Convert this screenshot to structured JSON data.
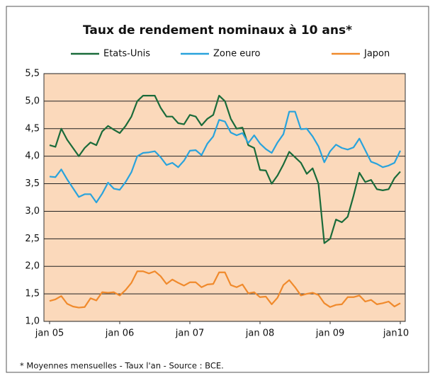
{
  "chart_data": {
    "type": "line",
    "title": "Taux de rendement nominaux à 10 ans*",
    "footnote": "* Moyennes mensuelles - Taux l'an - Source : BCE.",
    "categories": [
      "jan 05",
      null,
      null,
      null,
      null,
      null,
      null,
      null,
      null,
      null,
      null,
      null,
      "jan 06",
      null,
      null,
      null,
      null,
      null,
      null,
      null,
      null,
      null,
      null,
      null,
      "jan 07",
      null,
      null,
      null,
      null,
      null,
      null,
      null,
      null,
      null,
      null,
      null,
      "jan 08",
      null,
      null,
      null,
      null,
      null,
      null,
      null,
      null,
      null,
      null,
      null,
      "jan 09",
      null,
      null,
      null,
      null,
      null,
      null,
      null,
      null,
      null,
      null,
      null,
      "jan10"
    ],
    "series": [
      {
        "name": "Etats-Unis",
        "color": "#1a6b3a",
        "values": [
          4.2,
          4.17,
          4.5,
          4.3,
          4.15,
          4.0,
          4.15,
          4.25,
          4.2,
          4.45,
          4.55,
          4.48,
          4.42,
          4.55,
          4.72,
          5.0,
          5.1,
          5.1,
          5.1,
          4.88,
          4.72,
          4.72,
          4.6,
          4.58,
          4.75,
          4.72,
          4.56,
          4.68,
          4.75,
          5.1,
          5.0,
          4.68,
          4.5,
          4.52,
          4.2,
          4.15,
          3.75,
          3.74,
          3.5,
          3.65,
          3.85,
          4.08,
          3.98,
          3.88,
          3.68,
          3.78,
          3.5,
          2.42,
          2.5,
          2.85,
          2.8,
          2.9,
          3.28,
          3.7,
          3.53,
          3.57,
          3.4,
          3.38,
          3.4,
          3.6,
          3.72
        ]
      },
      {
        "name": "Zone euro",
        "color": "#29a3dc",
        "values": [
          3.63,
          3.62,
          3.76,
          3.58,
          3.42,
          3.26,
          3.31,
          3.31,
          3.16,
          3.32,
          3.52,
          3.41,
          3.39,
          3.53,
          3.71,
          4.0,
          4.06,
          4.07,
          4.09,
          3.98,
          3.84,
          3.88,
          3.8,
          3.92,
          4.1,
          4.11,
          4.02,
          4.23,
          4.36,
          4.66,
          4.63,
          4.43,
          4.38,
          4.42,
          4.24,
          4.38,
          4.23,
          4.13,
          4.06,
          4.25,
          4.4,
          4.81,
          4.81,
          4.49,
          4.5,
          4.36,
          4.18,
          3.89,
          4.09,
          4.21,
          4.15,
          4.12,
          4.16,
          4.32,
          4.11,
          3.9,
          3.86,
          3.8,
          3.83,
          3.88,
          4.1
        ]
      },
      {
        "name": "Japon",
        "color": "#f08a2c",
        "values": [
          1.37,
          1.4,
          1.46,
          1.32,
          1.27,
          1.25,
          1.26,
          1.42,
          1.38,
          1.53,
          1.52,
          1.53,
          1.47,
          1.57,
          1.7,
          1.91,
          1.91,
          1.87,
          1.91,
          1.82,
          1.68,
          1.76,
          1.7,
          1.65,
          1.71,
          1.71,
          1.62,
          1.67,
          1.68,
          1.89,
          1.89,
          1.66,
          1.62,
          1.67,
          1.51,
          1.53,
          1.44,
          1.45,
          1.31,
          1.43,
          1.66,
          1.75,
          1.62,
          1.47,
          1.5,
          1.52,
          1.48,
          1.33,
          1.26,
          1.3,
          1.31,
          1.44,
          1.44,
          1.47,
          1.36,
          1.39,
          1.31,
          1.33,
          1.36,
          1.27,
          1.33
        ]
      }
    ],
    "ylim": [
      1.0,
      5.5
    ],
    "yticks": [
      {
        "value": 1.0,
        "label": "1,0"
      },
      {
        "value": 1.5,
        "label": "1,5"
      },
      {
        "value": 2.0,
        "label": "2,0"
      },
      {
        "value": 2.5,
        "label": "2,5"
      },
      {
        "value": 3.0,
        "label": "3,0"
      },
      {
        "value": 3.5,
        "label": "3,5"
      },
      {
        "value": 4.0,
        "label": "4,0"
      },
      {
        "value": 4.5,
        "label": "4,5"
      },
      {
        "value": 5.0,
        "label": "5,0"
      },
      {
        "value": 5.5,
        "label": "5,5"
      }
    ],
    "grid": true,
    "background": "#fbd9bb"
  }
}
